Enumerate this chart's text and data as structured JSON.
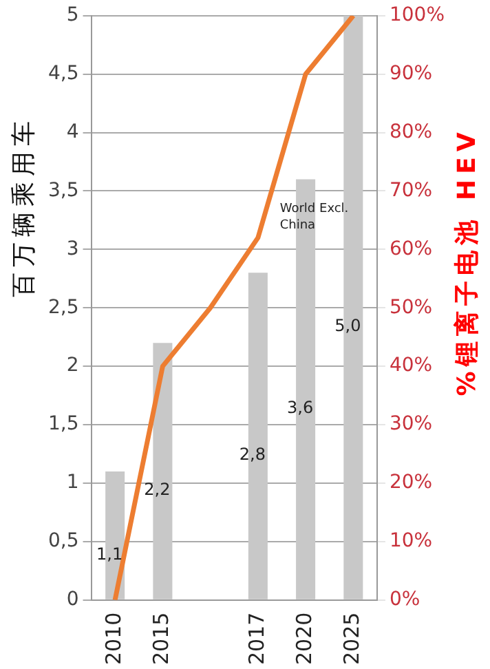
{
  "chart_data": {
    "type": "bar",
    "ylabel": "百万辆乘用车",
    "y2label": "%锂离子电池 HEV",
    "categories": [
      "2010",
      "2015",
      null,
      "2017",
      "2020",
      "2025"
    ],
    "series": [
      {
        "color": "#c8c8c8",
        "values": [
          1.1,
          2.2,
          null,
          2.8,
          3.6,
          5.0
        ],
        "value_labels": [
          "1,1",
          "2,2",
          null,
          "2,8",
          "3,6",
          "5,0"
        ]
      },
      {
        "type": "line",
        "axis": "y2",
        "color": "#ed7d31",
        "values": [
          0,
          40,
          50,
          62,
          90,
          100
        ]
      }
    ],
    "ylim": [
      0,
      5
    ],
    "yticks": [
      0,
      {
        "value": 0.5,
        "label": "0,5"
      },
      1,
      {
        "value": 1.5,
        "label": "1,5"
      },
      2,
      {
        "value": 2.5,
        "label": "2,5"
      },
      3,
      {
        "value": 3.5,
        "label": "3,5"
      },
      4,
      {
        "value": 4.5,
        "label": "4,5"
      },
      5
    ],
    "y2lim": [
      0,
      100
    ],
    "y2ticks": [
      {
        "value": 0,
        "label": "0%"
      },
      {
        "value": 10,
        "label": "10%"
      },
      {
        "value": 20,
        "label": "20%"
      },
      {
        "value": 30,
        "label": "30%"
      },
      {
        "value": 40,
        "label": "40%"
      },
      {
        "value": 50,
        "label": "50%"
      },
      {
        "value": 60,
        "label": "60%"
      },
      {
        "value": 70,
        "label": "70%"
      },
      {
        "value": 80,
        "label": "80%"
      },
      {
        "value": 90,
        "label": "90%"
      },
      {
        "value": 100,
        "label": "100%"
      }
    ],
    "annotations": [
      "World Excl. China"
    ],
    "grid": "y",
    "legend": false,
    "marker": "none"
  }
}
